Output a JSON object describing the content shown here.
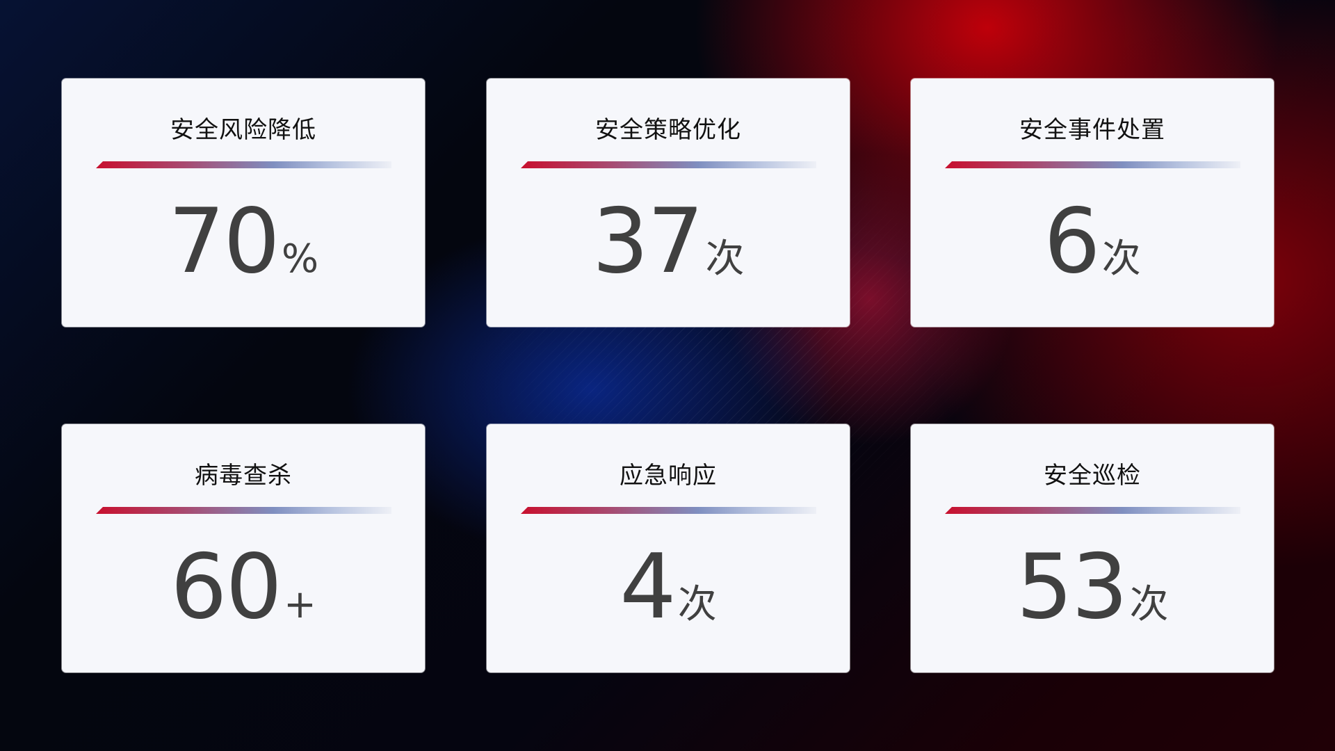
{
  "cards": [
    {
      "title": "安全风险降低",
      "value": "70",
      "unit": "%"
    },
    {
      "title": "安全策略优化",
      "value": "37",
      "unit": "次"
    },
    {
      "title": "安全事件处置",
      "value": "6",
      "unit": "次"
    },
    {
      "title": "病毒查杀",
      "value": "60",
      "unit": "+"
    },
    {
      "title": "应急响应",
      "value": "4",
      "unit": "次"
    },
    {
      "title": "安全巡检",
      "value": "53",
      "unit": "次"
    }
  ],
  "colors": {
    "accent_red": "#c8102e",
    "accent_blue": "#7f8fc0",
    "card_bg": "#f6f7fb",
    "value_text": "#404040"
  }
}
